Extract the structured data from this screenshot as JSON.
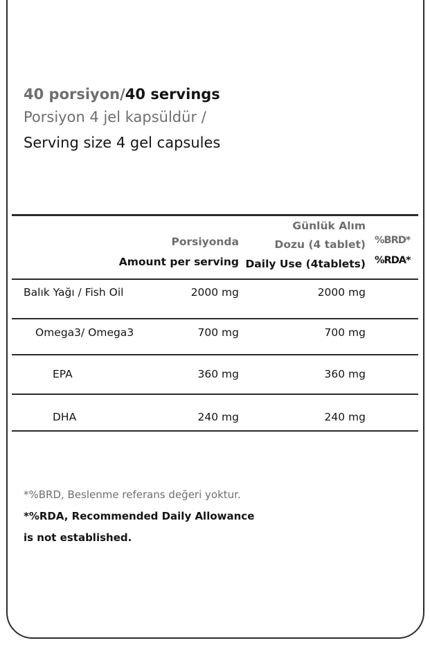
{
  "header": {
    "servings_tr": "40 porsiyon/",
    "servings_en": "40 servings",
    "serving_size_tr": "Porsiyon 4 jel kapsüldür  /",
    "serving_size_en": "Serving size 4 gel capsules"
  },
  "table": {
    "columns": {
      "per_serving_tr": "Porsiyonda",
      "per_serving_en": "Amount per serving",
      "daily_tr_1": "Günlük Alım",
      "daily_tr_2": "Dozu (4 tablet)",
      "daily_en": "Daily Use (4tablets)",
      "rda_tr": "%BRD*",
      "rda_en": "%RDA*"
    },
    "rows": [
      {
        "name": "Balık Yağı / Fish Oil",
        "per_serving": "2000 mg",
        "daily": "2000 mg"
      },
      {
        "name": "Omega3/ Omega3",
        "per_serving": "700 mg",
        "daily": "700 mg"
      },
      {
        "name": "EPA",
        "per_serving": "360 mg",
        "daily": "360 mg"
      },
      {
        "name": "DHA",
        "per_serving": "240 mg",
        "daily": "240 mg"
      }
    ]
  },
  "footnotes": {
    "tr": "*%BRD, Beslenme referans değeri yoktur.",
    "en_1": "*%RDA, Recommended Daily Allowance",
    "en_2": "is not established."
  },
  "colors": {
    "gray_text": "#6e6e6e",
    "black_text": "#141414"
  }
}
